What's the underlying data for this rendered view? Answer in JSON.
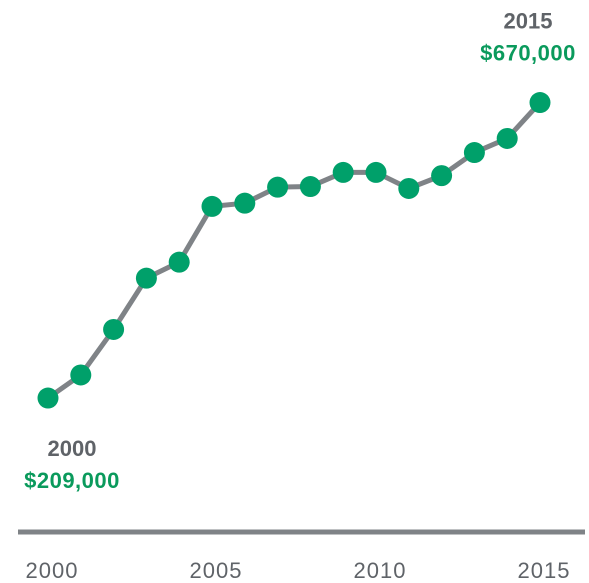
{
  "chart_data": {
    "type": "line",
    "x": [
      2000,
      2001,
      2002,
      2003,
      2004,
      2005,
      2006,
      2007,
      2008,
      2009,
      2010,
      2011,
      2012,
      2013,
      2014,
      2015
    ],
    "series": [
      {
        "color": "#00a06a",
        "values": [
          209000,
          245000,
          316000,
          396000,
          421000,
          508000,
          513000,
          538000,
          539000,
          561000,
          561000,
          536000,
          556000,
          592000,
          614000,
          670000
        ],
        "value_labels": [
          "$209,000",
          null,
          null,
          null,
          null,
          null,
          null,
          null,
          null,
          null,
          null,
          null,
          null,
          null,
          null,
          "$670,000"
        ]
      }
    ],
    "line_color": "#7f8387",
    "xlim": [
      2000,
      2015
    ],
    "xticks": [
      2000,
      2005,
      2010,
      2015
    ],
    "ylim": [
      0,
      830000
    ]
  }
}
